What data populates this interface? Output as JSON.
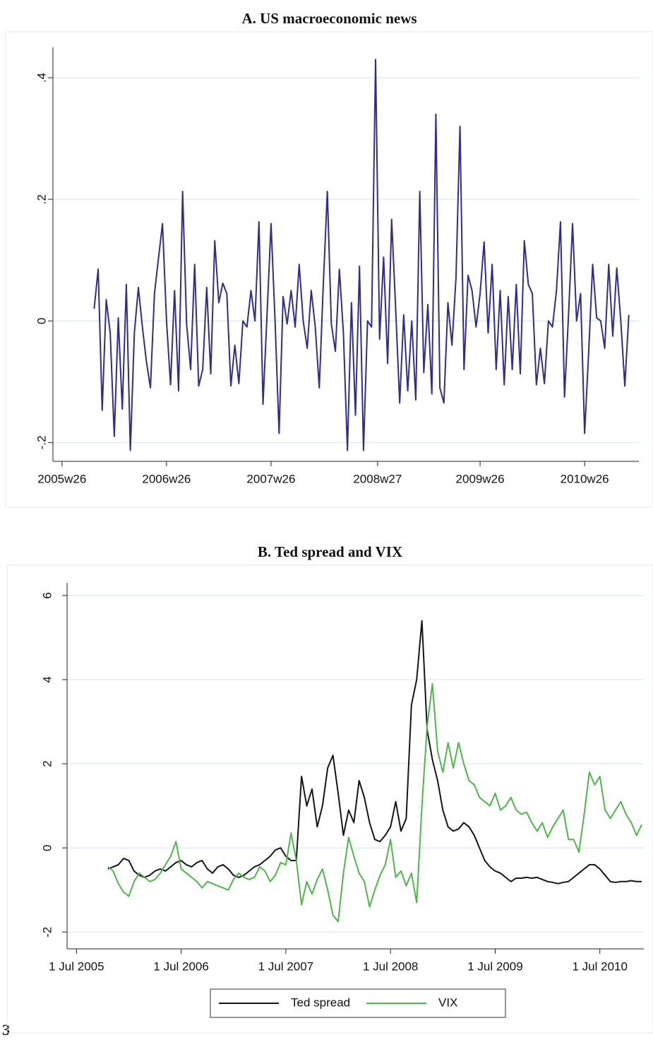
{
  "chart_data": [
    {
      "type": "line",
      "title": "A. US macroeconomic news",
      "x": [
        2381,
        2383,
        2385,
        2387,
        2389,
        2391,
        2393,
        2395,
        2397,
        2399,
        2401,
        2403,
        2405,
        2407,
        2409,
        2411,
        2413,
        2415,
        2417,
        2419,
        2421,
        2423,
        2425,
        2427,
        2429,
        2431,
        2433,
        2435,
        2437,
        2439,
        2441,
        2443,
        2445,
        2447,
        2449,
        2451,
        2453,
        2455,
        2457,
        2459,
        2461,
        2463,
        2465,
        2467,
        2469,
        2471,
        2473,
        2475,
        2477,
        2479,
        2481,
        2483,
        2485,
        2487,
        2489,
        2491,
        2493,
        2495,
        2497,
        2499,
        2501,
        2503,
        2505,
        2507,
        2509,
        2511,
        2513,
        2515,
        2517,
        2519,
        2521,
        2523,
        2525,
        2527,
        2529,
        2531,
        2533,
        2535,
        2537,
        2539,
        2541,
        2543,
        2545,
        2547,
        2549,
        2551,
        2553,
        2555,
        2557,
        2559,
        2561,
        2563,
        2565,
        2567,
        2569,
        2571,
        2573,
        2575,
        2577,
        2579,
        2581,
        2583,
        2585,
        2587,
        2589,
        2591,
        2593,
        2595,
        2597,
        2599,
        2601,
        2603,
        2605,
        2607,
        2609,
        2611,
        2613,
        2615,
        2617,
        2619,
        2621,
        2623,
        2625,
        2627,
        2629,
        2631,
        2633,
        2635,
        2637,
        2639,
        2641,
        2643,
        2645,
        2647
      ],
      "series": [
        {
          "name": "US macroeconomic news",
          "color": "#2f2d8e",
          "values": [
            0.02,
            0.085,
            -0.147,
            0.035,
            -0.02,
            -0.19,
            0.005,
            -0.145,
            0.06,
            -0.213,
            -0.02,
            0.055,
            -0.01,
            -0.067,
            -0.11,
            0.045,
            0.103,
            0.16,
            0.0,
            -0.105,
            0.05,
            -0.115,
            0.213,
            -0.005,
            -0.08,
            0.093,
            -0.107,
            -0.08,
            0.055,
            -0.087,
            0.132,
            0.03,
            0.062,
            0.045,
            -0.107,
            -0.04,
            -0.103,
            0.0,
            -0.01,
            0.05,
            0.0,
            0.163,
            -0.137,
            0.01,
            0.16,
            0.0,
            -0.185,
            0.04,
            -0.005,
            0.05,
            -0.01,
            0.093,
            0.0,
            -0.045,
            0.05,
            -0.01,
            -0.11,
            0.06,
            0.213,
            -0.005,
            -0.05,
            0.085,
            -0.02,
            -0.213,
            0.03,
            -0.155,
            0.09,
            -0.213,
            0.0,
            -0.01,
            0.43,
            -0.03,
            0.105,
            -0.07,
            0.167,
            0.02,
            -0.135,
            0.01,
            -0.115,
            0.0,
            -0.13,
            0.213,
            -0.085,
            0.027,
            -0.12,
            0.34,
            -0.11,
            -0.135,
            0.03,
            -0.04,
            0.07,
            0.32,
            -0.08,
            0.075,
            0.05,
            -0.01,
            0.045,
            0.13,
            -0.02,
            0.093,
            -0.08,
            0.05,
            -0.105,
            0.04,
            -0.08,
            0.06,
            -0.087,
            0.132,
            0.06,
            0.045,
            -0.105,
            -0.045,
            -0.103,
            0.0,
            -0.01,
            0.05,
            0.163,
            -0.125,
            0.01,
            0.16,
            0.0,
            0.045,
            -0.185,
            -0.053,
            0.093,
            0.005,
            0.0,
            -0.045,
            0.093,
            -0.025,
            0.087,
            0.0,
            -0.107,
            0.01
          ]
        }
      ],
      "xlim": [
        2360.5,
        2652
      ],
      "xticks": [
        {
          "value": 2365,
          "label": "2005w26"
        },
        {
          "value": 2417,
          "label": "2006w26"
        },
        {
          "value": 2469,
          "label": "2007w26"
        },
        {
          "value": 2522,
          "label": "2008w27"
        },
        {
          "value": 2573,
          "label": "2009w26"
        },
        {
          "value": 2625,
          "label": "2010w26"
        }
      ],
      "ylim": [
        -0.231,
        0.45
      ],
      "yticks": [
        {
          "value": -0.2,
          "label": "-.2"
        },
        0,
        {
          "value": 0.2,
          "label": ".2"
        },
        {
          "value": 0.4,
          "label": ".4"
        }
      ],
      "grid": true
    },
    {
      "type": "line",
      "title": "B. Ted spread and VIX",
      "x": [
        2005.8,
        2005.85,
        2005.9,
        2005.95,
        2006.0,
        2006.05,
        2006.1,
        2006.15,
        2006.2,
        2006.25,
        2006.3,
        2006.35,
        2006.4,
        2006.45,
        2006.5,
        2006.55,
        2006.6,
        2006.65,
        2006.7,
        2006.75,
        2006.8,
        2006.85,
        2006.9,
        2006.95,
        2007.0,
        2007.05,
        2007.1,
        2007.15,
        2007.2,
        2007.25,
        2007.3,
        2007.35,
        2007.4,
        2007.45,
        2007.5,
        2007.55,
        2007.6,
        2007.65,
        2007.7,
        2007.75,
        2007.8,
        2007.85,
        2007.9,
        2007.95,
        2008.0,
        2008.05,
        2008.1,
        2008.15,
        2008.2,
        2008.25,
        2008.3,
        2008.35,
        2008.4,
        2008.45,
        2008.5,
        2008.55,
        2008.6,
        2008.65,
        2008.7,
        2008.75,
        2008.8,
        2008.85,
        2008.9,
        2008.95,
        2009.0,
        2009.05,
        2009.1,
        2009.15,
        2009.2,
        2009.25,
        2009.3,
        2009.35,
        2009.4,
        2009.45,
        2009.5,
        2009.55,
        2009.6,
        2009.65,
        2009.7,
        2009.75,
        2009.8,
        2009.85,
        2009.9,
        2009.95,
        2010.0,
        2010.05,
        2010.1,
        2010.15,
        2010.2,
        2010.25,
        2010.3,
        2010.35,
        2010.4,
        2010.45,
        2010.5,
        2010.55,
        2010.6,
        2010.65,
        2010.7,
        2010.75,
        2010.8,
        2010.85,
        2010.9
      ],
      "series": [
        {
          "name": "Ted spread",
          "color": "#151515",
          "values": [
            -0.5,
            -0.45,
            -0.4,
            -0.25,
            -0.3,
            -0.55,
            -0.65,
            -0.7,
            -0.65,
            -0.55,
            -0.5,
            -0.55,
            -0.45,
            -0.35,
            -0.3,
            -0.4,
            -0.45,
            -0.35,
            -0.3,
            -0.5,
            -0.6,
            -0.45,
            -0.4,
            -0.5,
            -0.65,
            -0.7,
            -0.65,
            -0.55,
            -0.45,
            -0.4,
            -0.3,
            -0.2,
            -0.05,
            0.0,
            -0.2,
            -0.3,
            -0.3,
            1.7,
            1.0,
            1.4,
            0.5,
            1.0,
            1.9,
            2.2,
            1.3,
            0.3,
            0.9,
            0.6,
            1.6,
            1.2,
            0.6,
            0.2,
            0.15,
            0.3,
            0.5,
            1.1,
            0.4,
            0.7,
            3.4,
            4.0,
            5.4,
            2.8,
            2.1,
            1.6,
            0.9,
            0.5,
            0.4,
            0.45,
            0.6,
            0.5,
            0.3,
            0.0,
            -0.3,
            -0.45,
            -0.55,
            -0.6,
            -0.7,
            -0.8,
            -0.72,
            -0.72,
            -0.7,
            -0.72,
            -0.7,
            -0.75,
            -0.8,
            -0.82,
            -0.85,
            -0.82,
            -0.8,
            -0.7,
            -0.6,
            -0.5,
            -0.4,
            -0.4,
            -0.5,
            -0.65,
            -0.8,
            -0.82,
            -0.8,
            -0.8,
            -0.78,
            -0.8,
            -0.8
          ]
        },
        {
          "name": "VIX",
          "color": "#4db848",
          "values": [
            -0.45,
            -0.55,
            -0.85,
            -1.05,
            -1.15,
            -0.8,
            -0.6,
            -0.7,
            -0.8,
            -0.75,
            -0.6,
            -0.4,
            -0.2,
            0.15,
            -0.5,
            -0.6,
            -0.7,
            -0.8,
            -0.95,
            -0.8,
            -0.85,
            -0.9,
            -0.95,
            -1.0,
            -0.75,
            -0.6,
            -0.7,
            -0.75,
            -0.7,
            -0.45,
            -0.55,
            -0.8,
            -0.65,
            -0.35,
            -0.4,
            0.35,
            -0.3,
            -1.35,
            -0.8,
            -1.1,
            -0.75,
            -0.5,
            -1.0,
            -1.6,
            -1.75,
            -0.6,
            0.25,
            -0.2,
            -0.6,
            -0.8,
            -1.4,
            -1.0,
            -0.65,
            -0.4,
            0.2,
            -0.7,
            -0.55,
            -0.9,
            -0.6,
            -1.3,
            1.0,
            2.9,
            3.9,
            2.3,
            1.8,
            2.5,
            1.9,
            2.5,
            2.0,
            1.6,
            1.5,
            1.2,
            1.1,
            1.0,
            1.3,
            0.9,
            1.0,
            1.2,
            0.9,
            0.8,
            0.85,
            0.6,
            0.4,
            0.6,
            0.25,
            0.5,
            0.7,
            0.9,
            0.2,
            0.2,
            -0.1,
            0.8,
            1.8,
            1.5,
            1.7,
            0.9,
            0.7,
            0.9,
            1.1,
            0.8,
            0.6,
            0.3,
            0.55
          ]
        }
      ],
      "xlim": [
        2005.41,
        2010.92
      ],
      "xticks": [
        {
          "value": 2005.5,
          "label": "1 Jul 2005"
        },
        {
          "value": 2006.5,
          "label": "1 Jul 2006"
        },
        {
          "value": 2007.5,
          "label": "1 Jul 2007"
        },
        {
          "value": 2008.5,
          "label": "1 Jul 2008"
        },
        {
          "value": 2009.5,
          "label": "1 Jul 2009"
        },
        {
          "value": 2010.5,
          "label": "1 Jul 2010"
        }
      ],
      "ylim": [
        -2.4,
        6.3
      ],
      "yticks": [
        -2,
        0,
        2,
        4,
        6
      ],
      "grid": true,
      "legend": "bottom"
    }
  ],
  "footer": "3"
}
